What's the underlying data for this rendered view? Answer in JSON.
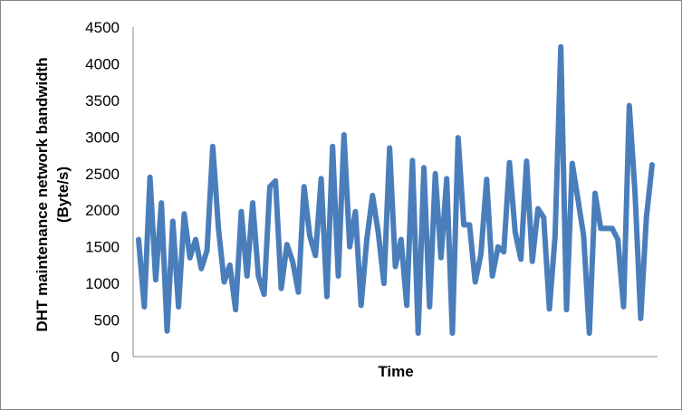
{
  "chart_data": {
    "type": "line",
    "title": "",
    "xlabel": "Time",
    "ylabel_line1": "DHT maintenance network bandwidth",
    "ylabel_line2": "(Byte/s)",
    "ylim": [
      0,
      4500
    ],
    "yticks": [
      0,
      500,
      1000,
      1500,
      2000,
      2500,
      3000,
      3500,
      4000,
      4500
    ],
    "grid": false,
    "legend": "none",
    "series": [
      {
        "color": "#4a7ebb",
        "values": [
          1600,
          680,
          2450,
          1050,
          2100,
          350,
          1850,
          680,
          1950,
          1350,
          1600,
          1200,
          1450,
          2870,
          1750,
          1020,
          1250,
          640,
          1980,
          1100,
          2100,
          1100,
          850,
          2320,
          2400,
          930,
          1530,
          1300,
          880,
          2320,
          1650,
          1380,
          2430,
          820,
          2870,
          1100,
          3030,
          1500,
          1980,
          700,
          1600,
          2200,
          1700,
          1000,
          2850,
          1230,
          1600,
          700,
          2680,
          320,
          2580,
          680,
          2500,
          1350,
          2430,
          320,
          2990,
          1800,
          1800,
          1020,
          1400,
          2420,
          1100,
          1500,
          1430,
          2650,
          1700,
          1330,
          2670,
          1300,
          2020,
          1900,
          650,
          1650,
          4230,
          640,
          2640,
          2150,
          1650,
          320,
          2230,
          1750,
          1750,
          1750,
          1600,
          680,
          3430,
          2250,
          520,
          1900,
          2620
        ]
      }
    ]
  }
}
